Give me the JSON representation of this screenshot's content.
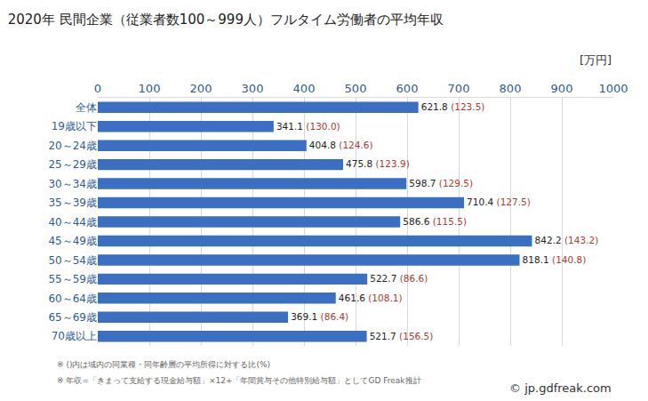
{
  "chart_data": {
    "type": "bar",
    "orientation": "horizontal",
    "title": "2020年 民間企業（従業者数100～999人）フルタイム労働者の平均年収",
    "x_label": "[万円]",
    "categories": [
      "全体",
      "19歳以下",
      "20～24歳",
      "25～29歳",
      "30～34歳",
      "35～39歳",
      "40～44歳",
      "45～49歳",
      "50～54歳",
      "55～59歳",
      "60～64歳",
      "65～69歳",
      "70歳以上"
    ],
    "values": [
      621.8,
      341.1,
      404.8,
      475.8,
      598.7,
      710.4,
      586.6,
      842.2,
      818.1,
      522.7,
      461.6,
      369.1,
      521.7
    ],
    "ratios": [
      123.5,
      130.0,
      124.6,
      123.9,
      129.5,
      127.5,
      115.5,
      143.2,
      140.8,
      86.6,
      108.1,
      86.4,
      156.5
    ],
    "ratio_labels": [
      "(123.5)",
      "(130.0)",
      "(124.6)",
      "(123.9)",
      "(129.5)",
      "(127.5)",
      "(115.5)",
      "(143.2)",
      "(140.8)",
      "(86.6)",
      "(108.1)",
      "(86.4)",
      "(156.5)"
    ],
    "color": "#3b6fc2",
    "xlim": [
      0,
      1000
    ],
    "xticks": [
      0,
      100,
      200,
      300,
      400,
      500,
      600,
      700,
      800,
      900,
      1000
    ],
    "grid": true,
    "data_labels": true,
    "notes": [
      "※ ()内は域内の同業種・同年齢層の平均所得に対する比(%)",
      "※ 年収=「きまって支給する現金給与額」×12+「年間賞与その他特別給与額」としてGD Freak推計"
    ],
    "source": "© jp.gdfreak.com"
  }
}
